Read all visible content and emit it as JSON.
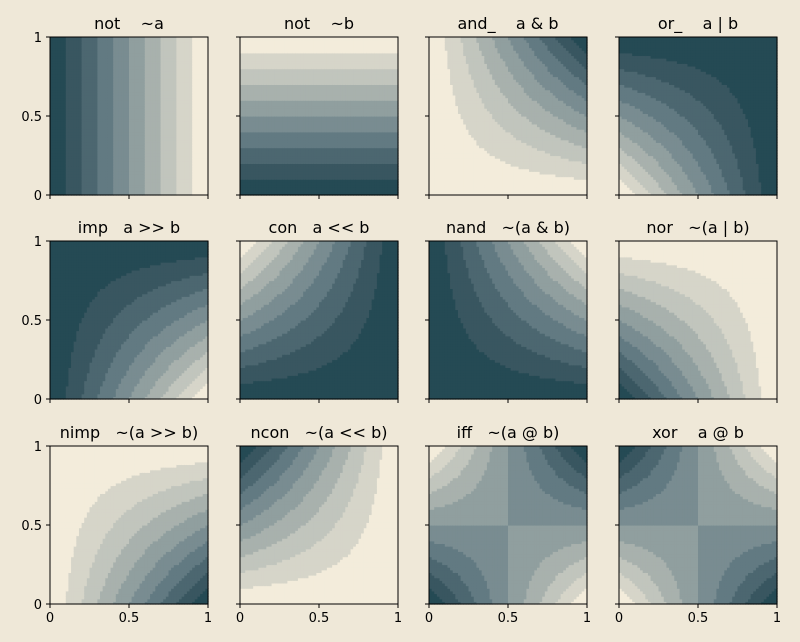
{
  "figure": {
    "background": "#efe8d8",
    "colormap": [
      "#f3ecdb",
      "#d6d5c9",
      "#c1c5bd",
      "#a8b1ad",
      "#909f9f",
      "#798c91",
      "#627a82",
      "#4c6770",
      "#395660",
      "#254a54",
      "#103a47"
    ]
  },
  "chart_data": [
    {
      "type": "heatmap",
      "title": "not    ~a",
      "expr": "1-a",
      "xlim": [
        0,
        1
      ],
      "ylim": [
        0,
        1
      ],
      "xticks": [],
      "yticks": [
        "0",
        "0.5",
        "1"
      ]
    },
    {
      "type": "heatmap",
      "title": "not    ~b",
      "expr": "1-b",
      "xlim": [
        0,
        1
      ],
      "ylim": [
        0,
        1
      ],
      "xticks": [],
      "yticks": []
    },
    {
      "type": "heatmap",
      "title": "and_    a & b",
      "expr": "a*b",
      "xlim": [
        0,
        1
      ],
      "ylim": [
        0,
        1
      ],
      "xticks": [],
      "yticks": []
    },
    {
      "type": "heatmap",
      "title": "or_    a | b",
      "expr": "a+b-a*b",
      "xlim": [
        0,
        1
      ],
      "ylim": [
        0,
        1
      ],
      "xticks": [],
      "yticks": []
    },
    {
      "type": "heatmap",
      "title": "imp   a >> b",
      "expr": "1-a+a*b",
      "xlim": [
        0,
        1
      ],
      "ylim": [
        0,
        1
      ],
      "xticks": [],
      "yticks": [
        "0",
        "0.5",
        "1"
      ]
    },
    {
      "type": "heatmap",
      "title": "con   a << b",
      "expr": "1-b+a*b",
      "xlim": [
        0,
        1
      ],
      "ylim": [
        0,
        1
      ],
      "xticks": [],
      "yticks": []
    },
    {
      "type": "heatmap",
      "title": "nand   ~(a & b)",
      "expr": "1-a*b",
      "xlim": [
        0,
        1
      ],
      "ylim": [
        0,
        1
      ],
      "xticks": [],
      "yticks": []
    },
    {
      "type": "heatmap",
      "title": "nor   ~(a | b)",
      "expr": "(1-a)*(1-b)",
      "xlim": [
        0,
        1
      ],
      "ylim": [
        0,
        1
      ],
      "xticks": [],
      "yticks": []
    },
    {
      "type": "heatmap",
      "title": "nimp   ~(a >> b)",
      "expr": "a*(1-b)",
      "xlim": [
        0,
        1
      ],
      "ylim": [
        0,
        1
      ],
      "xticks": [
        "0",
        "0.5",
        "1"
      ],
      "yticks": [
        "0",
        "0.5",
        "1"
      ]
    },
    {
      "type": "heatmap",
      "title": "ncon   ~(a << b)",
      "expr": "b*(1-a)",
      "xlim": [
        0,
        1
      ],
      "ylim": [
        0,
        1
      ],
      "xticks": [
        "0",
        "0.5",
        "1"
      ],
      "yticks": []
    },
    {
      "type": "heatmap",
      "title": "iff   ~(a @ b)",
      "expr": "1-(a+b-2*a*b)",
      "xlim": [
        0,
        1
      ],
      "ylim": [
        0,
        1
      ],
      "xticks": [
        "0",
        "0.5",
        "1"
      ],
      "yticks": []
    },
    {
      "type": "heatmap",
      "title": "xor    a @ b",
      "expr": "a+b-2*a*b",
      "xlim": [
        0,
        1
      ],
      "ylim": [
        0,
        1
      ],
      "xticks": [
        "0",
        "0.5",
        "1"
      ],
      "yticks": []
    }
  ]
}
